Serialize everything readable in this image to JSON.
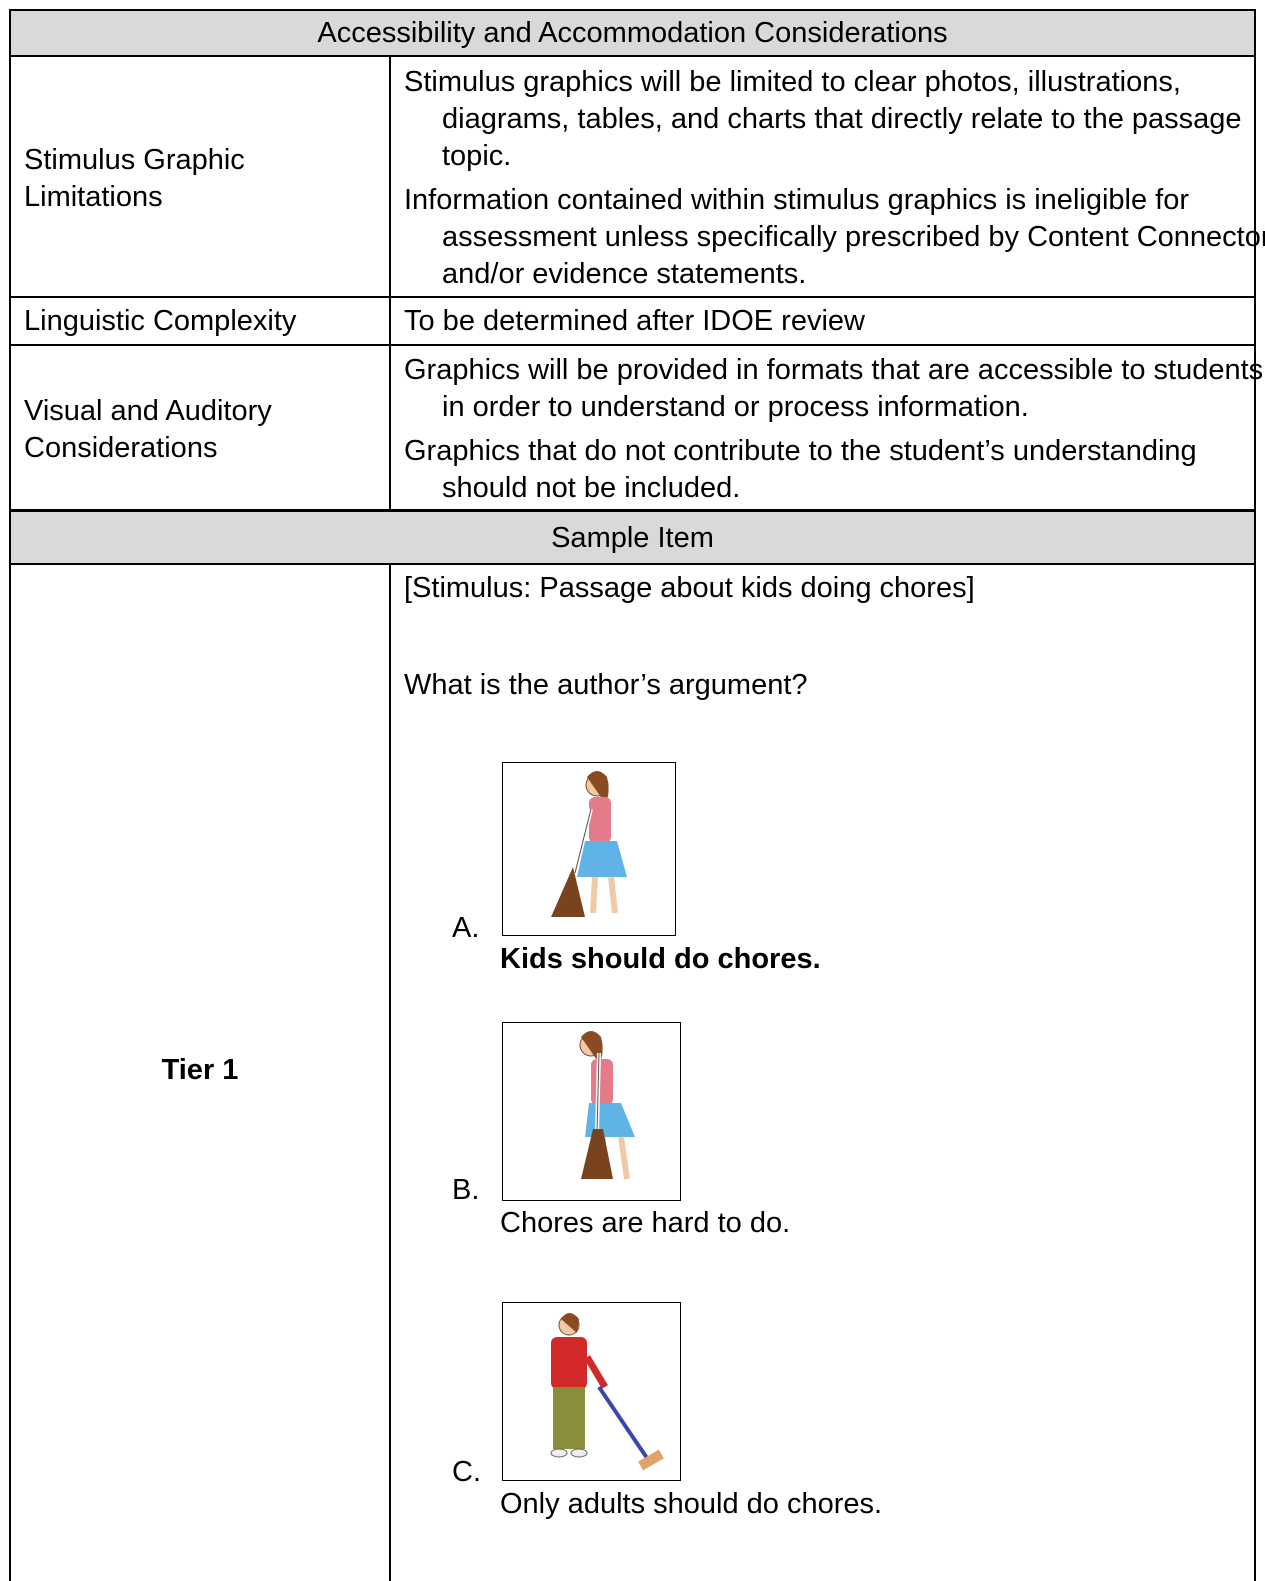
{
  "table": {
    "header": "Accessibility and Accommodation Considerations",
    "rows": [
      {
        "label": "Stimulus Graphic Limitations",
        "content": [
          "Stimulus graphics will be limited to clear photos, illustrations, diagrams, tables, and charts that directly relate to the passage topic.",
          "Information contained within stimulus graphics is ineligible for assessment unless specifically prescribed by Content Connector and/or evidence statements."
        ]
      },
      {
        "label": "Linguistic Complexity",
        "content": [
          "To be determined after IDOE review"
        ]
      },
      {
        "label": "Visual and Auditory Considerations",
        "content": [
          "Graphics will be provided in formats that are accessible to students in order to understand or process information.",
          "Graphics that do not contribute to the student’s understanding should not be included."
        ]
      }
    ],
    "section_header": "Sample Item",
    "sample": {
      "label": "Tier 1",
      "stimulus": "[Stimulus: Passage about kids doing chores]",
      "question": "What is the author’s argument?",
      "options": [
        {
          "letter": "A.",
          "text": "Kids should do chores.",
          "correct": true
        },
        {
          "letter": "B.",
          "text": "Chores are hard to do.",
          "correct": false
        },
        {
          "letter": "C.",
          "text": "Only adults should do chores.",
          "correct": false
        }
      ]
    }
  }
}
